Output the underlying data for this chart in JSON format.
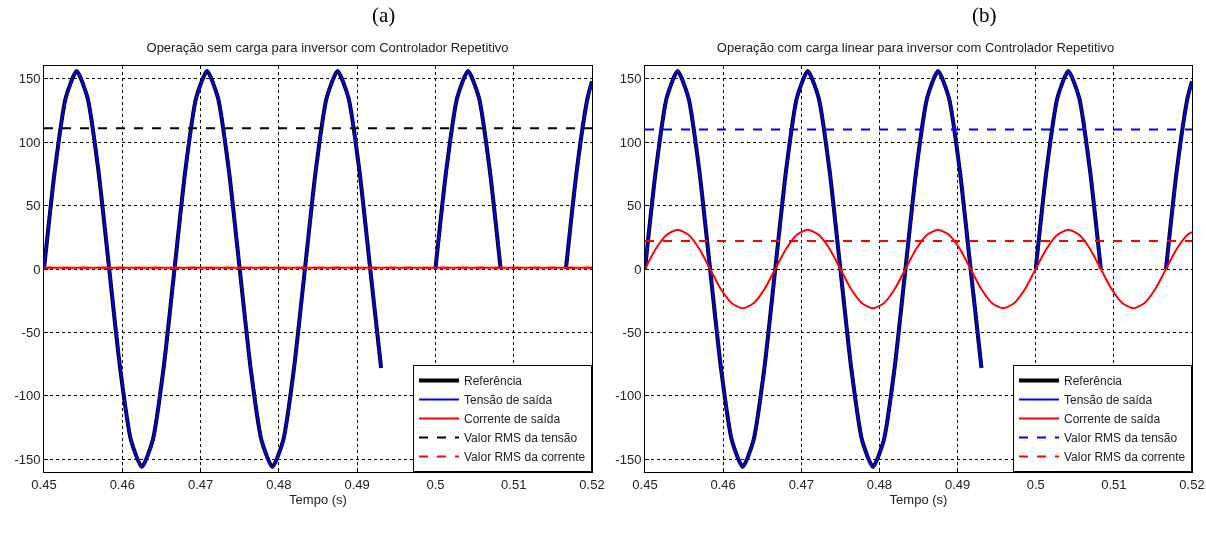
{
  "chart_data": [
    {
      "type": "line",
      "title": "Operação sem carga para inversor com Controlador Repetitivo",
      "annotations": [
        "(a)"
      ],
      "xlabel": "Tempo (s)",
      "xlim": [
        0.45,
        0.52
      ],
      "ylim": [
        -160,
        160
      ],
      "xticks": [
        0.45,
        0.46,
        0.47,
        0.48,
        0.49,
        0.5,
        0.51,
        0.52
      ],
      "yticks": [
        -150,
        -100,
        -50,
        0,
        50,
        100,
        150
      ],
      "grid": true,
      "legend": "bottom right",
      "series": [
        {
          "name": "Referência",
          "color": "#000000",
          "line_style": "solid",
          "x": [
            0.45,
            0.45139,
            0.45278,
            0.45417,
            0.45556,
            0.45694,
            0.45833,
            0.45972,
            0.46111,
            0.4625,
            0.46389,
            0.46528,
            0.46667,
            0.46806,
            0.46944,
            0.47083,
            0.47222,
            0.47361,
            0.475,
            0.47639,
            0.47778,
            0.47917,
            0.48056,
            0.48194,
            0.48333,
            0.48472,
            0.48611,
            0.4875,
            0.48889,
            0.49028,
            0.49167,
            0.49306,
            0.49444,
            0.49583,
            0.49722,
            0.49861,
            0.5,
            0.50139,
            0.50278,
            0.50417,
            0.50556,
            0.50694,
            0.50833,
            0.50972,
            0.51111,
            0.5125,
            0.51389,
            0.51528,
            0.51667,
            0.51806,
            0.51944,
            0.52
          ],
          "values": [
            0,
            78,
            135,
            156,
            135,
            78,
            0,
            -78,
            -135,
            -156,
            -135,
            -78,
            0,
            78,
            135,
            156,
            135,
            78,
            0,
            -78,
            -135,
            -156,
            -135,
            -78,
            0,
            78,
            135,
            156,
            135,
            78,
            0,
            -78,
            null,
            null,
            null,
            null,
            0,
            78,
            135,
            156,
            135,
            78,
            0,
            null,
            null,
            null,
            null,
            null,
            0,
            78,
            135,
            148
          ]
        },
        {
          "name": "Tensão de saída",
          "color": "#0000ff",
          "line_style": "solid",
          "x": [
            0.45,
            0.45139,
            0.45278,
            0.45417,
            0.45556,
            0.45694,
            0.45833,
            0.45972,
            0.46111,
            0.4625,
            0.46389,
            0.46528,
            0.46667,
            0.46806,
            0.46944,
            0.47083,
            0.47222,
            0.47361,
            0.475,
            0.47639,
            0.47778,
            0.47917,
            0.48056,
            0.48194,
            0.48333,
            0.48472,
            0.48611,
            0.4875,
            0.48889,
            0.49028,
            0.49167,
            0.49306,
            0.49444,
            0.49583,
            0.49722,
            0.49861,
            0.5,
            0.50139,
            0.50278,
            0.50417,
            0.50556,
            0.50694,
            0.50833,
            0.50972,
            0.51111,
            0.5125,
            0.51389,
            0.51528,
            0.51667,
            0.51806,
            0.51944,
            0.52
          ],
          "values": [
            0,
            78,
            135,
            156,
            135,
            78,
            0,
            -78,
            -135,
            -156,
            -135,
            -78,
            0,
            78,
            135,
            156,
            135,
            78,
            0,
            -78,
            -135,
            -156,
            -135,
            -78,
            0,
            78,
            135,
            156,
            135,
            78,
            0,
            -78,
            null,
            null,
            null,
            null,
            0,
            78,
            135,
            156,
            135,
            78,
            0,
            null,
            null,
            null,
            null,
            null,
            0,
            78,
            135,
            148
          ]
        },
        {
          "name": "Corrente de saída",
          "color": "#ff0000",
          "line_style": "solid",
          "x": [
            0.45,
            0.52
          ],
          "values": [
            1,
            1
          ]
        },
        {
          "name": "Valor RMS da tensão",
          "color": "#000000",
          "line_style": "dashed",
          "x": [
            0.45,
            0.52
          ],
          "values": [
            111,
            111
          ]
        },
        {
          "name": "Valor RMS da corrente",
          "color": "#ff0000",
          "line_style": "dashed",
          "x": [
            0.45,
            0.52
          ],
          "values": [
            1,
            1
          ]
        }
      ]
    },
    {
      "type": "line",
      "title": "Operação com carga linear para inversor com Controlador Repetitivo",
      "annotations": [
        "(b)"
      ],
      "xlabel": "Tempo (s)",
      "xlim": [
        0.45,
        0.52
      ],
      "ylim": [
        -160,
        160
      ],
      "xticks": [
        0.45,
        0.46,
        0.47,
        0.48,
        0.49,
        0.5,
        0.51,
        0.52
      ],
      "yticks": [
        -150,
        -100,
        -50,
        0,
        50,
        100,
        150
      ],
      "grid": true,
      "legend": "bottom right",
      "series": [
        {
          "name": "Referência",
          "color": "#000000",
          "line_style": "solid",
          "x": [
            0.45,
            0.45139,
            0.45278,
            0.45417,
            0.45556,
            0.45694,
            0.45833,
            0.45972,
            0.46111,
            0.4625,
            0.46389,
            0.46528,
            0.46667,
            0.46806,
            0.46944,
            0.47083,
            0.47222,
            0.47361,
            0.475,
            0.47639,
            0.47778,
            0.47917,
            0.48056,
            0.48194,
            0.48333,
            0.48472,
            0.48611,
            0.4875,
            0.48889,
            0.49028,
            0.49167,
            0.49306,
            0.49444,
            0.49583,
            0.49722,
            0.49861,
            0.5,
            0.50139,
            0.50278,
            0.50417,
            0.50556,
            0.50694,
            0.50833,
            0.50972,
            0.51111,
            0.5125,
            0.51389,
            0.51528,
            0.51667,
            0.51806,
            0.51944,
            0.52
          ],
          "values": [
            0,
            78,
            135,
            156,
            135,
            78,
            0,
            -78,
            -135,
            -156,
            -135,
            -78,
            0,
            78,
            135,
            156,
            135,
            78,
            0,
            -78,
            -135,
            -156,
            -135,
            -78,
            0,
            78,
            135,
            156,
            135,
            78,
            0,
            -78,
            null,
            null,
            null,
            null,
            0,
            78,
            135,
            156,
            135,
            78,
            0,
            null,
            null,
            null,
            null,
            null,
            0,
            78,
            135,
            148
          ]
        },
        {
          "name": "Tensão de saída",
          "color": "#0000ff",
          "line_style": "solid",
          "x": [
            0.45,
            0.45139,
            0.45278,
            0.45417,
            0.45556,
            0.45694,
            0.45833,
            0.45972,
            0.46111,
            0.4625,
            0.46389,
            0.46528,
            0.46667,
            0.46806,
            0.46944,
            0.47083,
            0.47222,
            0.47361,
            0.475,
            0.47639,
            0.47778,
            0.47917,
            0.48056,
            0.48194,
            0.48333,
            0.48472,
            0.48611,
            0.4875,
            0.48889,
            0.49028,
            0.49167,
            0.49306,
            0.49444,
            0.49583,
            0.49722,
            0.49861,
            0.5,
            0.50139,
            0.50278,
            0.50417,
            0.50556,
            0.50694,
            0.50833,
            0.50972,
            0.51111,
            0.5125,
            0.51389,
            0.51528,
            0.51667,
            0.51806,
            0.51944,
            0.52
          ],
          "values": [
            0,
            78,
            135,
            156,
            135,
            78,
            0,
            -78,
            -135,
            -156,
            -135,
            -78,
            0,
            78,
            135,
            156,
            135,
            78,
            0,
            -78,
            -135,
            -156,
            -135,
            -78,
            0,
            78,
            135,
            156,
            135,
            78,
            0,
            -78,
            null,
            null,
            null,
            null,
            0,
            78,
            135,
            156,
            135,
            78,
            0,
            null,
            null,
            null,
            null,
            null,
            0,
            78,
            135,
            148
          ]
        },
        {
          "name": "Corrente de saída",
          "color": "#ff0000",
          "line_style": "solid",
          "x": [
            0.45,
            0.45139,
            0.45278,
            0.45417,
            0.45556,
            0.45694,
            0.45833,
            0.45972,
            0.46111,
            0.4625,
            0.46389,
            0.46528,
            0.46667,
            0.46806,
            0.46944,
            0.47083,
            0.47222,
            0.47361,
            0.475,
            0.47639,
            0.47778,
            0.47917,
            0.48056,
            0.48194,
            0.48333,
            0.48472,
            0.48611,
            0.4875,
            0.48889,
            0.49028,
            0.49167,
            0.49306,
            0.49444,
            0.49583,
            0.49722,
            0.49861,
            0.5,
            0.50139,
            0.50278,
            0.50417,
            0.50556,
            0.50694,
            0.50833,
            0.50972,
            0.51111,
            0.5125,
            0.51389,
            0.51528,
            0.51667,
            0.51806,
            0.51944,
            0.52
          ],
          "values": [
            0,
            16,
            27,
            31,
            27,
            16,
            0,
            -16,
            -27,
            -31,
            -27,
            -16,
            0,
            16,
            27,
            31,
            27,
            16,
            0,
            -16,
            -27,
            -31,
            -27,
            -16,
            0,
            16,
            27,
            31,
            27,
            16,
            0,
            -16,
            -27,
            -31,
            -27,
            -16,
            0,
            16,
            27,
            31,
            27,
            16,
            0,
            -16,
            -27,
            -31,
            -27,
            -16,
            0,
            16,
            27,
            29
          ]
        },
        {
          "name": "Valor RMS da tensão",
          "color": "#0000ff",
          "line_style": "dashed",
          "x": [
            0.45,
            0.52
          ],
          "values": [
            110,
            110
          ]
        },
        {
          "name": "Valor RMS da corrente",
          "color": "#ff0000",
          "line_style": "dashed",
          "x": [
            0.45,
            0.52
          ],
          "values": [
            22,
            22
          ]
        }
      ]
    }
  ]
}
